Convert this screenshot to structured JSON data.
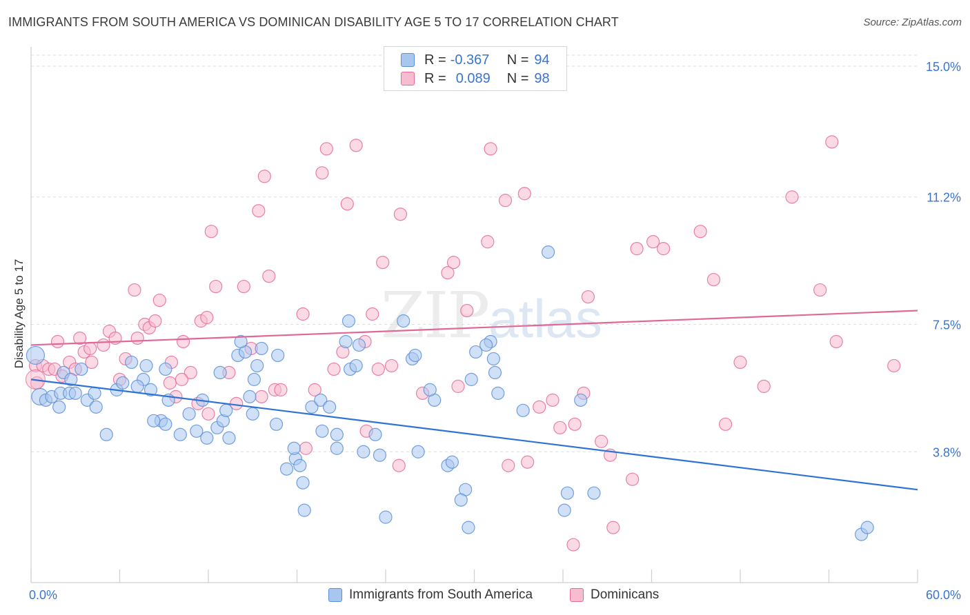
{
  "title": "IMMIGRANTS FROM SOUTH AMERICA VS DOMINICAN DISABILITY AGE 5 TO 17 CORRELATION CHART",
  "source": "Source: ZipAtlas.com",
  "watermark": {
    "zip": "ZIP",
    "atlas": "atlas"
  },
  "colors": {
    "blue": "#5b8fd9",
    "blue_fill": "#a9c6ef",
    "blue_line": "#2f72d6",
    "pink": "#e46c98",
    "pink_fill": "#f7bcd0",
    "pink_line": "#e06897",
    "axis_text": "#3a74d0"
  },
  "legend": {
    "rows": [
      {
        "r_label": "R =",
        "r_value": "-0.367",
        "n_label": "N =",
        "n_value": "94"
      },
      {
        "r_label": "R =",
        "r_value": "0.089",
        "n_label": "N =",
        "n_value": "98"
      }
    ]
  },
  "bottom_legend": {
    "series1": "Immigrants from South America",
    "series2": "Dominicans"
  },
  "chart_data": {
    "type": "scatter",
    "title": "IMMIGRANTS FROM SOUTH AMERICA VS DOMINICAN DISABILITY AGE 5 TO 17 CORRELATION CHART",
    "xlabel": "",
    "ylabel": "Disability Age 5 to 17",
    "xlim": [
      0,
      60
    ],
    "ylim": [
      0,
      15.0
    ],
    "x_tick_labels": [
      "0.0%",
      "60.0%"
    ],
    "y_ticks": [
      3.8,
      7.5,
      11.2,
      15.0
    ],
    "y_tick_labels": [
      "3.8%",
      "7.5%",
      "11.2%",
      "15.0%"
    ],
    "grid": "horizontal dashed",
    "series": [
      {
        "name": "Immigrants from South America",
        "r": -0.367,
        "n": 94,
        "trend": [
          [
            0,
            5.9
          ],
          [
            60,
            2.7
          ]
        ],
        "points": [
          [
            0.3,
            6.6
          ],
          [
            0.6,
            5.4
          ],
          [
            1.0,
            5.3
          ],
          [
            1.4,
            5.4
          ],
          [
            2.0,
            5.5
          ],
          [
            2.6,
            5.5
          ],
          [
            3.8,
            5.3
          ],
          [
            4.3,
            5.5
          ],
          [
            2.2,
            6.1
          ],
          [
            2.7,
            5.9
          ],
          [
            3.4,
            6.2
          ],
          [
            1.9,
            5.1
          ],
          [
            3.0,
            5.5
          ],
          [
            4.4,
            5.1
          ],
          [
            5.8,
            5.6
          ],
          [
            6.2,
            5.8
          ],
          [
            7.8,
            6.3
          ],
          [
            8.1,
            5.6
          ],
          [
            9.1,
            6.2
          ],
          [
            9.3,
            5.3
          ],
          [
            7.6,
            5.9
          ],
          [
            8.8,
            4.7
          ],
          [
            9.1,
            4.6
          ],
          [
            10.7,
            4.9
          ],
          [
            11.2,
            4.4
          ],
          [
            11.9,
            4.2
          ],
          [
            12.6,
            4.5
          ],
          [
            13.0,
            4.7
          ],
          [
            13.4,
            4.2
          ],
          [
            14.0,
            6.6
          ],
          [
            15.1,
            5.9
          ],
          [
            15.3,
            6.3
          ],
          [
            16.6,
            4.6
          ],
          [
            15.6,
            6.8
          ],
          [
            14.5,
            6.7
          ],
          [
            15.0,
            4.9
          ],
          [
            14.2,
            7.0
          ],
          [
            17.9,
            3.6
          ],
          [
            17.3,
            3.3
          ],
          [
            18.2,
            3.4
          ],
          [
            18.4,
            2.9
          ],
          [
            17.8,
            3.9
          ],
          [
            19.0,
            5.1
          ],
          [
            19.6,
            5.3
          ],
          [
            19.7,
            4.4
          ],
          [
            21.6,
            6.2
          ],
          [
            21.3,
            7.0
          ],
          [
            22.0,
            6.3
          ],
          [
            22.2,
            6.9
          ],
          [
            20.7,
            3.9
          ],
          [
            20.7,
            4.3
          ],
          [
            18.5,
            2.1
          ],
          [
            21.5,
            7.6
          ],
          [
            22.5,
            3.8
          ],
          [
            23.3,
            4.3
          ],
          [
            23.6,
            3.7
          ],
          [
            25.8,
            6.5
          ],
          [
            26.0,
            6.6
          ],
          [
            25.2,
            7.6
          ],
          [
            26.2,
            3.8
          ],
          [
            27.3,
            5.3
          ],
          [
            28.2,
            3.4
          ],
          [
            28.5,
            3.5
          ],
          [
            29.4,
            2.7
          ],
          [
            29.1,
            2.4
          ],
          [
            29.6,
            1.6
          ],
          [
            31.1,
            7.0
          ],
          [
            31.3,
            6.5
          ],
          [
            31.4,
            6.1
          ],
          [
            30.8,
            6.9
          ],
          [
            30.1,
            6.7
          ],
          [
            29.8,
            5.9
          ],
          [
            31.6,
            5.5
          ],
          [
            33.3,
            5.0
          ],
          [
            35.0,
            9.6
          ],
          [
            36.1,
            2.1
          ],
          [
            37.2,
            5.3
          ],
          [
            36.3,
            2.6
          ],
          [
            38.1,
            2.6
          ],
          [
            24.0,
            1.9
          ],
          [
            7.2,
            5.7
          ],
          [
            5.1,
            4.3
          ],
          [
            8.3,
            4.7
          ],
          [
            10.1,
            4.3
          ],
          [
            11.6,
            5.3
          ],
          [
            13.2,
            5.0
          ],
          [
            16.7,
            6.6
          ],
          [
            14.8,
            5.4
          ],
          [
            12.8,
            6.1
          ],
          [
            6.8,
            6.4
          ],
          [
            56.2,
            1.4
          ],
          [
            56.6,
            1.6
          ],
          [
            20.2,
            5.1
          ],
          [
            27.0,
            5.6
          ]
        ]
      },
      {
        "name": "Dominicans",
        "r": 0.089,
        "n": 98,
        "trend": [
          [
            0,
            6.9
          ],
          [
            60,
            7.9
          ]
        ],
        "points": [
          [
            0.3,
            6.3
          ],
          [
            0.4,
            5.8
          ],
          [
            0.8,
            6.3
          ],
          [
            1.2,
            6.2
          ],
          [
            1.6,
            6.2
          ],
          [
            2.1,
            6.0
          ],
          [
            2.6,
            6.4
          ],
          [
            3.0,
            6.2
          ],
          [
            3.6,
            6.7
          ],
          [
            4.1,
            6.4
          ],
          [
            1.8,
            7.0
          ],
          [
            3.3,
            7.1
          ],
          [
            4.0,
            6.8
          ],
          [
            4.9,
            6.9
          ],
          [
            5.3,
            7.3
          ],
          [
            5.7,
            7.1
          ],
          [
            6.0,
            5.9
          ],
          [
            6.4,
            6.5
          ],
          [
            7.2,
            7.1
          ],
          [
            7.7,
            7.5
          ],
          [
            8.0,
            7.4
          ],
          [
            8.4,
            7.6
          ],
          [
            9.4,
            5.8
          ],
          [
            9.5,
            6.4
          ],
          [
            9.8,
            5.4
          ],
          [
            10.3,
            7.0
          ],
          [
            10.8,
            6.1
          ],
          [
            11.3,
            5.2
          ],
          [
            11.5,
            7.6
          ],
          [
            11.9,
            7.7
          ],
          [
            12.2,
            10.2
          ],
          [
            12.5,
            8.6
          ],
          [
            13.4,
            6.1
          ],
          [
            13.9,
            5.2
          ],
          [
            14.4,
            8.6
          ],
          [
            14.9,
            6.8
          ],
          [
            15.4,
            10.8
          ],
          [
            15.8,
            11.8
          ],
          [
            16.1,
            8.9
          ],
          [
            16.5,
            5.6
          ],
          [
            16.9,
            5.6
          ],
          [
            18.4,
            7.8
          ],
          [
            18.6,
            3.9
          ],
          [
            19.2,
            5.6
          ],
          [
            19.7,
            11.9
          ],
          [
            20.0,
            12.6
          ],
          [
            20.5,
            6.2
          ],
          [
            21.1,
            6.7
          ],
          [
            21.4,
            11.0
          ],
          [
            22.0,
            12.7
          ],
          [
            22.6,
            7.0
          ],
          [
            22.7,
            4.4
          ],
          [
            23.1,
            7.8
          ],
          [
            23.5,
            6.2
          ],
          [
            23.8,
            9.3
          ],
          [
            24.4,
            6.3
          ],
          [
            24.9,
            3.4
          ],
          [
            25.0,
            10.7
          ],
          [
            26.5,
            5.5
          ],
          [
            28.2,
            9.0
          ],
          [
            28.6,
            9.3
          ],
          [
            28.9,
            5.7
          ],
          [
            29.5,
            7.9
          ],
          [
            30.9,
            9.9
          ],
          [
            31.1,
            12.6
          ],
          [
            32.1,
            11.1
          ],
          [
            32.3,
            3.4
          ],
          [
            33.4,
            11.3
          ],
          [
            34.4,
            5.1
          ],
          [
            33.6,
            3.5
          ],
          [
            35.3,
            5.3
          ],
          [
            35.8,
            4.5
          ],
          [
            36.7,
            1.1
          ],
          [
            36.8,
            4.6
          ],
          [
            37.4,
            5.5
          ],
          [
            37.7,
            8.3
          ],
          [
            38.6,
            4.1
          ],
          [
            39.2,
            3.7
          ],
          [
            39.4,
            1.6
          ],
          [
            40.7,
            3.0
          ],
          [
            41.0,
            9.7
          ],
          [
            42.1,
            9.9
          ],
          [
            42.8,
            9.7
          ],
          [
            45.3,
            10.2
          ],
          [
            46.2,
            8.8
          ],
          [
            47.0,
            4.6
          ],
          [
            48.0,
            6.4
          ],
          [
            49.6,
            5.7
          ],
          [
            51.5,
            11.2
          ],
          [
            53.4,
            8.5
          ],
          [
            54.2,
            12.8
          ],
          [
            54.5,
            7.0
          ],
          [
            58.4,
            6.3
          ],
          [
            10.2,
            5.9
          ],
          [
            12.0,
            4.9
          ],
          [
            15.6,
            5.4
          ],
          [
            7.0,
            8.5
          ],
          [
            8.7,
            8.2
          ]
        ]
      }
    ]
  }
}
